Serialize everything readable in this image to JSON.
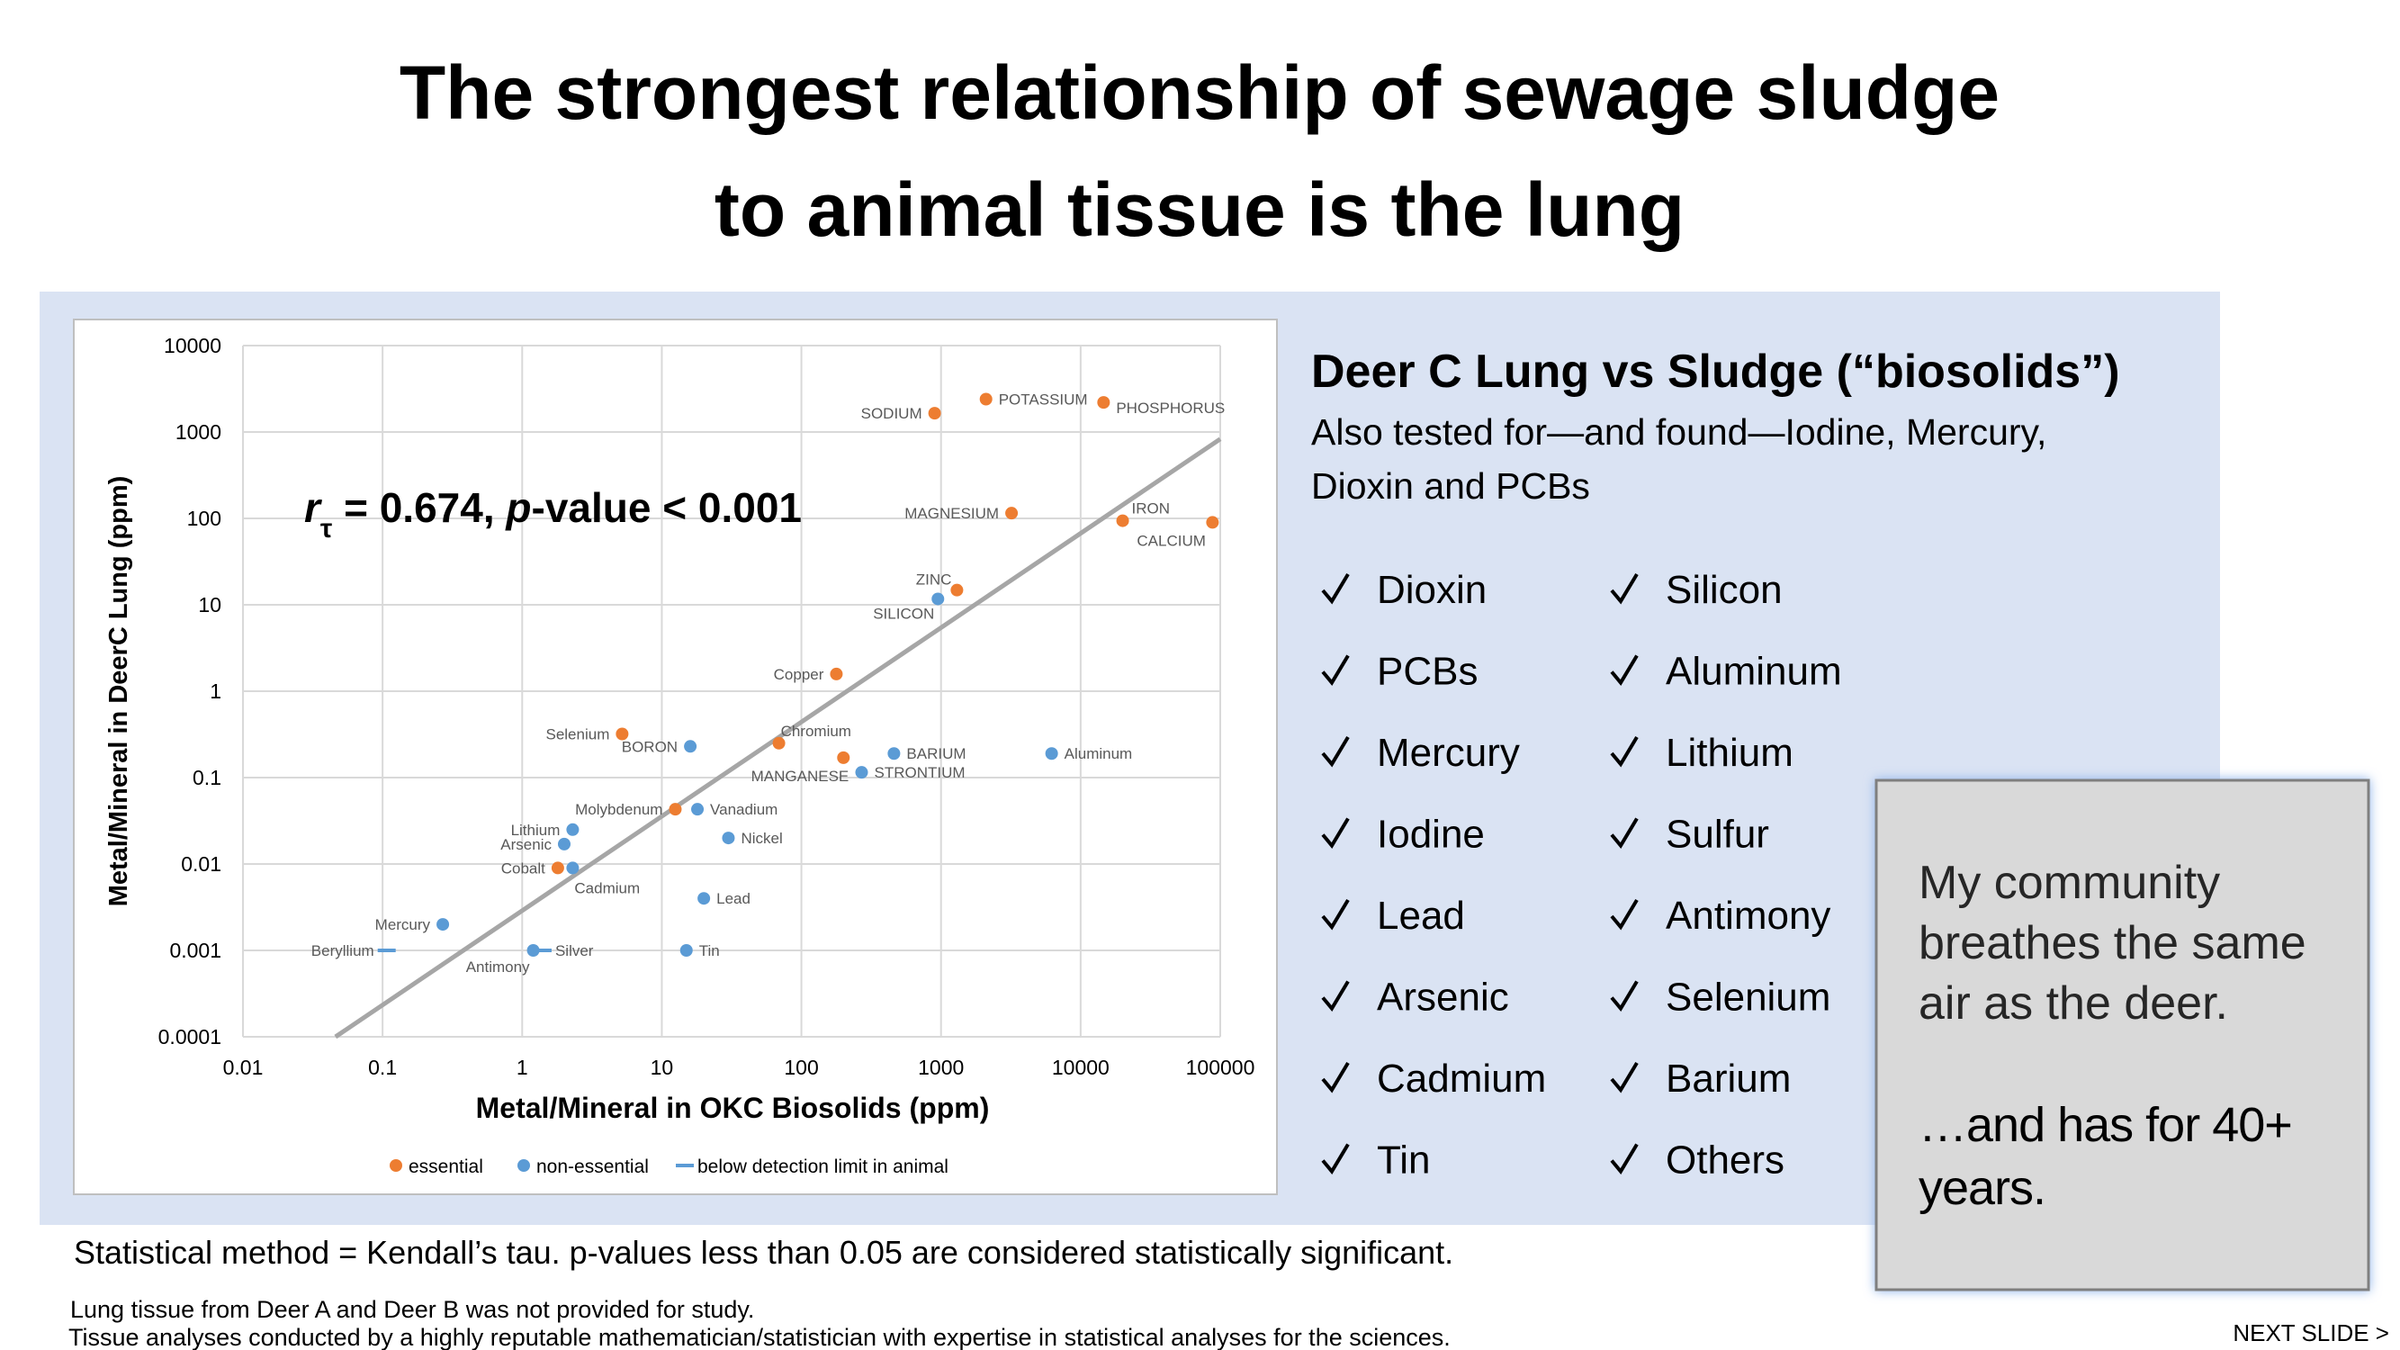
{
  "title": [
    "The strongest relationship of sewage sludge",
    "to animal tissue is the lung"
  ],
  "chart_data": {
    "type": "scatter",
    "x_label": "Metal/Mineral in OKC Biosolids (ppm)",
    "y_label": "Metal/Mineral in DeerC Lung (ppm)",
    "annotation": [
      "r",
      "τ",
      " = 0.674,   ",
      "p",
      "-value < 0.001"
    ],
    "log_x": true,
    "log_y": true,
    "grid": true,
    "legend": "bottom",
    "xlim": [
      0.01,
      100000
    ],
    "xticks": [
      0.01,
      0.1,
      1,
      10,
      100,
      1000,
      10000,
      100000
    ],
    "ylim": [
      0.0001,
      10000
    ],
    "yticks": [
      0.0001,
      0.001,
      0.01,
      0.1,
      1,
      10,
      100,
      1000,
      10000
    ],
    "series": [
      {
        "name": "essential",
        "color": "#ed7d31",
        "marker": "circle",
        "labels": [
          "SODIUM",
          "POTASSIUM",
          "PHOSPHORUS",
          "MAGNESIUM",
          "IRON",
          "CALCIUM",
          "ZINC",
          "Copper",
          "Selenium",
          "Chromium",
          "MANGANESE",
          "Molybdenum",
          "Cobalt"
        ],
        "x": [
          900,
          2100,
          14600,
          3200,
          20000,
          88000,
          1300,
          178,
          5.2,
          69,
          200,
          12.5,
          1.8
        ],
        "values": [
          1650,
          2400,
          2200,
          115,
          94,
          90,
          14.8,
          1.58,
          0.32,
          0.25,
          0.17,
          0.043,
          0.009
        ]
      },
      {
        "name": "non-essential",
        "color": "#5b9bd5",
        "marker": "circle",
        "labels": [
          "SILICON",
          "BORON",
          "BARIUM",
          "Aluminum",
          "STRONTIUM",
          "Vanadium",
          "Lithium",
          "Arsenic",
          "Nickel",
          "Cadmium",
          "Lead",
          "Mercury",
          "Antimony",
          "Tin"
        ],
        "x": [
          950,
          16,
          460,
          6200,
          270,
          18,
          2.3,
          2.0,
          30,
          2.3,
          20,
          0.27,
          1.2,
          15
        ],
        "values": [
          11.7,
          0.23,
          0.19,
          0.19,
          0.115,
          0.043,
          0.025,
          0.017,
          0.02,
          0.009,
          0.004,
          0.002,
          0.001,
          0.001
        ]
      },
      {
        "name": "below detection limit in animal",
        "color": "#5b9bd5",
        "marker": "dash",
        "labels": [
          "Beryllium",
          "Silver"
        ],
        "x": [
          0.107,
          1.4
        ],
        "values": [
          0.001,
          0.001
        ]
      }
    ],
    "trend_line": {
      "color": "#a6a6a6",
      "x": [
        0.046,
        100000
      ],
      "y": [
        0.0001,
        830
      ]
    }
  },
  "panel": {
    "heading": "Deer C Lung vs Sludge (“biosolids”)",
    "subtitle": [
      "Also tested for—and found—Iodine, Mercury,",
      "Dioxin and PCBs"
    ],
    "checklist": [
      [
        "Dioxin",
        "PCBs",
        "Mercury",
        "Iodine",
        "Lead",
        "Arsenic",
        "Cadmium",
        "Tin"
      ],
      [
        "Silicon",
        "Aluminum",
        "Lithium",
        "Sulfur",
        "Antimony",
        "Selenium",
        "Barium",
        "Others"
      ]
    ]
  },
  "callout": {
    "text": [
      "My community",
      "breathes the same",
      "air as the deer."
    ],
    "emphasis": [
      "…and has for 40+",
      "years."
    ]
  },
  "footer": {
    "method": "Statistical method = Kendall’s tau.  p-values less than 0.05 are considered statistically significant.",
    "notes": [
      "Lung tissue from Deer A and Deer B was not provided for study.",
      "Tissue analyses conducted by a highly reputable mathematician/statistician with expertise in statistical analyses for the sciences."
    ],
    "next": "NEXT SLIDE >"
  }
}
